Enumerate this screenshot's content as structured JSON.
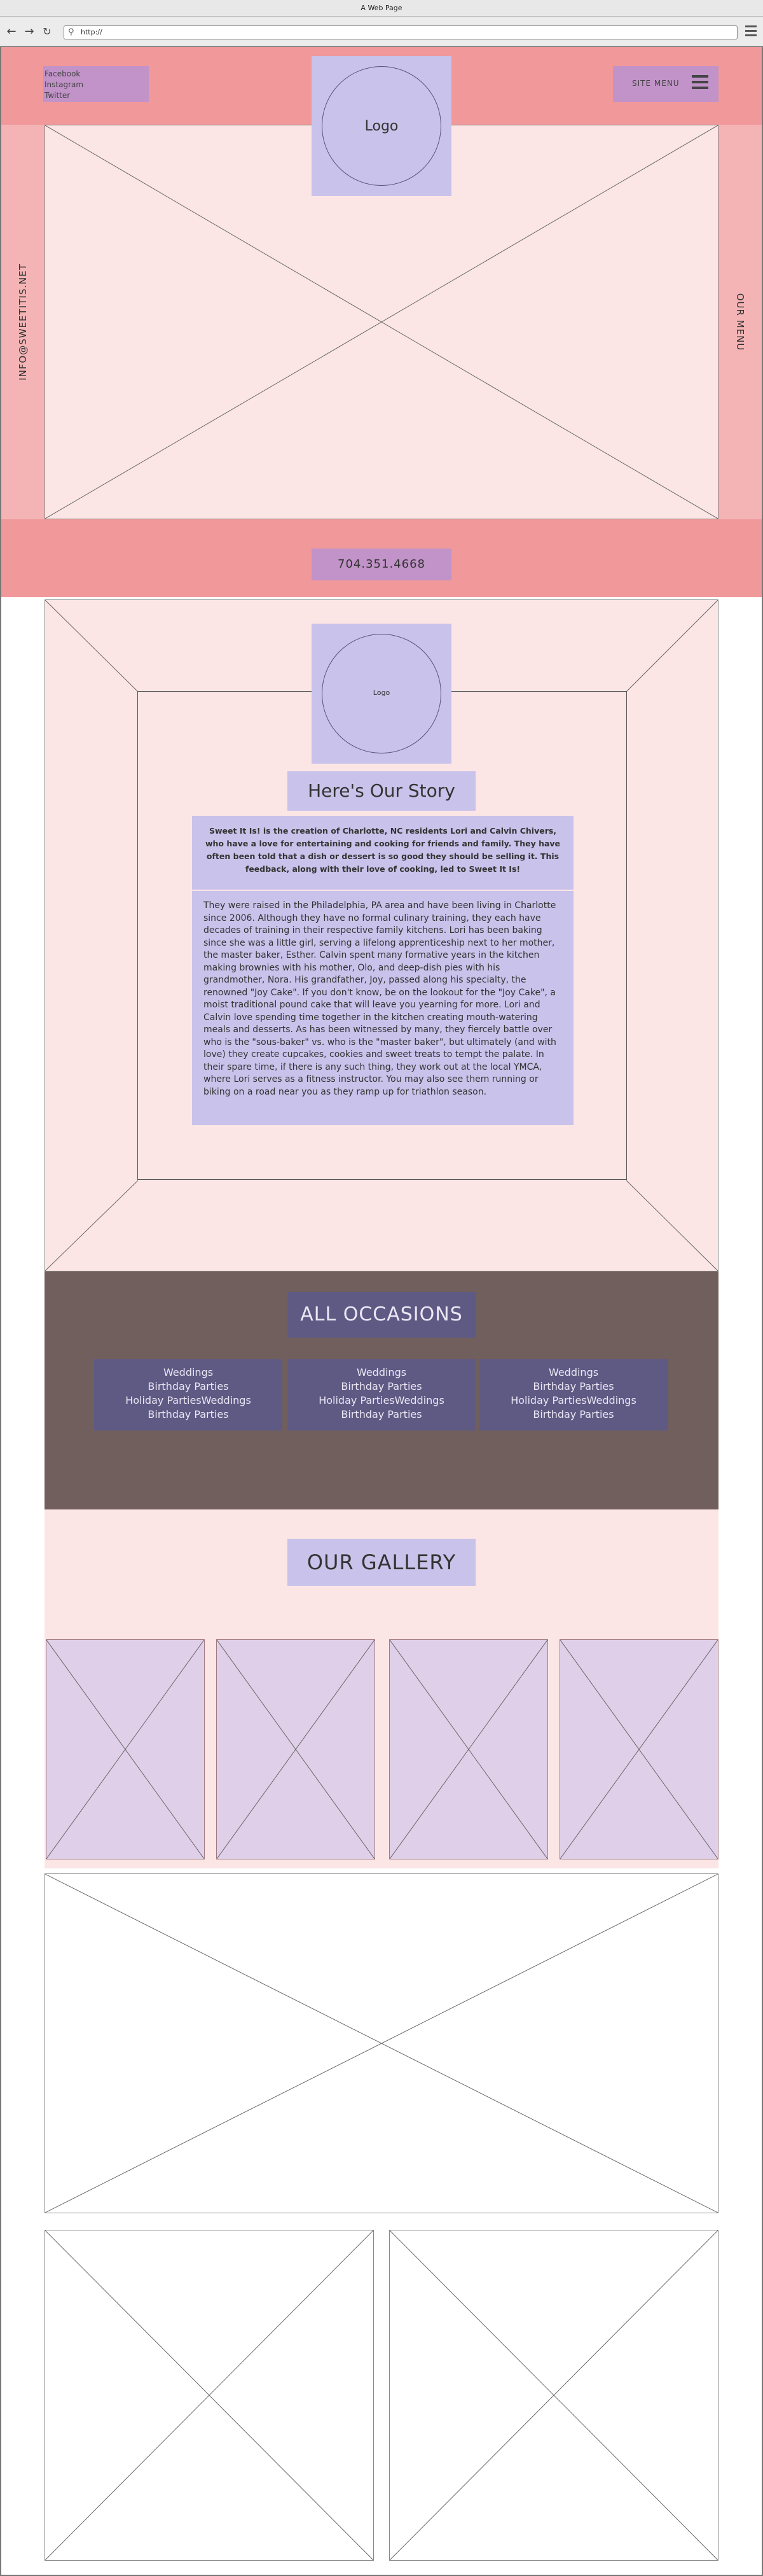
{
  "browser": {
    "window_title": "A Web Page",
    "url": "http://"
  },
  "header": {
    "social_links": [
      "Facebook",
      "Instagram",
      "Twitter"
    ],
    "logo_label": "Logo",
    "site_menu_label": "SITE MENU"
  },
  "hero": {
    "left_side_text": "INFO@SWEETITIS.NET",
    "right_side_text": "OUR MENU"
  },
  "contact": {
    "phone": "704.351.4668"
  },
  "story": {
    "logo_label": "Logo",
    "title": "Here's Our Story",
    "intro": "Sweet It Is! is the creation of Charlotte, NC residents Lori and Calvin Chivers, who have a love for entertaining and cooking for friends and family. They have often been told that a dish or dessert is so good they should be selling it. This feedback, along with their love of cooking, led to Sweet It Is!",
    "body": "They were raised in the Philadelphia, PA area and have been living in Charlotte since 2006. Although they have no formal culinary training, they each have decades of training in their respective family kitchens. Lori has been baking since she was a little girl, serving a lifelong apprenticeship next to her mother, the master baker, Esther. Calvin spent many formative years in the kitchen making brownies with his mother, Olo, and deep-dish pies with his grandmother, Nora. His grandfather, Joy, passed along his specialty, the renowned \"Joy Cake\". If you don't know, be on the lookout for the \"Joy Cake\", a moist traditional pound cake that will leave you yearning for more. Lori and Calvin love spending time together in the kitchen creating mouth-watering meals and desserts. As has been witnessed by many, they fiercely battle over who is the \"sous-baker\" vs. who is the \"master baker\", but ultimately (and with love) they create cupcakes, cookies and sweet treats to tempt the palate. In their spare time, if there is any such thing, they work out at the local YMCA, where Lori serves as a fitness instructor. You may also see them running or biking on a road near you as they ramp up for triathlon season."
  },
  "occasions": {
    "title": "ALL OCCASIONS",
    "cards": [
      {
        "lines": [
          "Weddings",
          "Birthday Parties",
          "Holiday PartiesWeddings",
          "Birthday Parties"
        ]
      },
      {
        "lines": [
          "Weddings",
          "Birthday Parties",
          "Holiday PartiesWeddings",
          "Birthday Parties"
        ]
      },
      {
        "lines": [
          "Weddings",
          "Birthday Parties",
          "Holiday PartiesWeddings",
          "Birthday Parties"
        ]
      }
    ]
  },
  "gallery": {
    "title": "OUR GALLERY"
  },
  "colors": {
    "header_band": "#f0989a",
    "side_panels": "#f4b4b6",
    "section_bg": "#fce5e5",
    "lavender_box": "#c9c2ea",
    "mauve_box": "#c193c8",
    "occasions_bg": "#715f5d",
    "occasions_box": "#5e5a84",
    "gallery_thumb": "#e0cfe8"
  },
  "icons": [
    "back-icon",
    "forward-icon",
    "reload-icon",
    "search-icon",
    "browser-menu-icon",
    "hamburger-icon"
  ]
}
